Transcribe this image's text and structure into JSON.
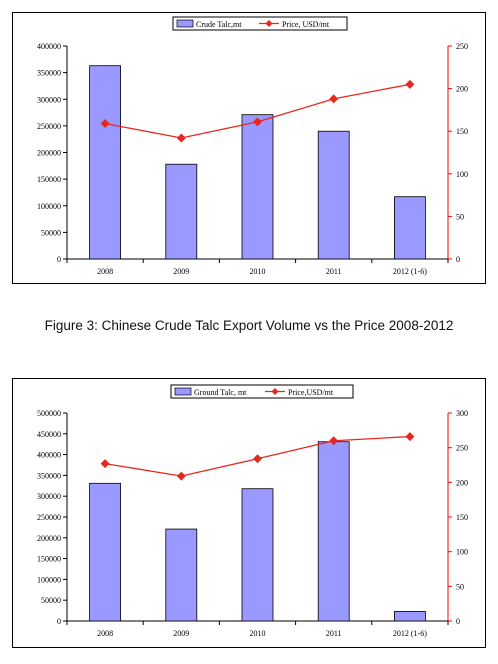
{
  "figure_caption": "Figure 3: Chinese Crude Talc Export Volume vs the Price 2008-2012",
  "chart_data": [
    {
      "type": "bar",
      "categories": [
        "2008",
        "2009",
        "2010",
        "2011",
        "2012 (1-6)"
      ],
      "series": [
        {
          "name": "Crude Talc,mt",
          "kind": "bar",
          "axis": "left",
          "values": [
            363000,
            178000,
            271000,
            240000,
            117000
          ]
        },
        {
          "name": "Price, USD/mt",
          "kind": "line",
          "axis": "right",
          "values": [
            159,
            142,
            161,
            188,
            205
          ]
        }
      ],
      "ylim": [
        0,
        400000
      ],
      "yticks": [
        "0",
        "50000",
        "100000",
        "150000",
        "200000",
        "250000",
        "300000",
        "350000",
        "400000"
      ],
      "y2lim": [
        0,
        250
      ],
      "y2ticks": [
        "0",
        "50",
        "100",
        "150",
        "200",
        "250"
      ],
      "legend_position": "top-center",
      "colors": {
        "bar": "#9999ff",
        "line": "#e8281e",
        "right_axis": "#ff0000"
      }
    },
    {
      "type": "bar",
      "categories": [
        "2008",
        "2009",
        "2010",
        "2011",
        "2012 (1-6)"
      ],
      "series": [
        {
          "name": "Ground Talc, mt",
          "kind": "bar",
          "axis": "left",
          "values": [
            331000,
            221000,
            318000,
            431000,
            23000
          ]
        },
        {
          "name": "Price,USD/mt",
          "kind": "line",
          "axis": "right",
          "values": [
            227,
            209,
            234,
            260,
            266
          ]
        }
      ],
      "ylim": [
        0,
        500000
      ],
      "yticks": [
        "0",
        "50000",
        "100000",
        "150000",
        "200000",
        "250000",
        "300000",
        "350000",
        "400000",
        "450000",
        "500000"
      ],
      "y2lim": [
        0,
        300
      ],
      "y2ticks": [
        "0",
        "50",
        "100",
        "150",
        "200",
        "250",
        "300"
      ],
      "legend_position": "top-center",
      "colors": {
        "bar": "#9999ff",
        "line": "#e8281e",
        "right_axis": "#ff0000"
      }
    }
  ]
}
